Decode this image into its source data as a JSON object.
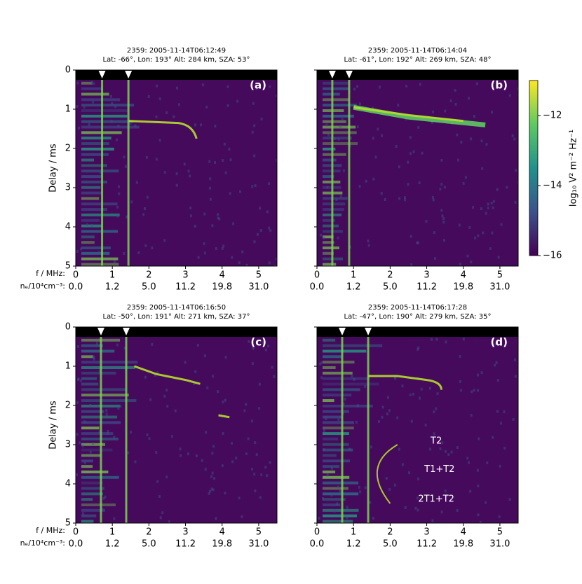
{
  "chart_data": [
    {
      "type": "spectrogram",
      "panel": "(a)",
      "title": [
        "2359: 2005-11-14T06:12:49",
        "Lat: -66°, Lon: 193° Alt: 284 km, SZA: 53°"
      ],
      "ylabel": "Delay / ms",
      "xlabel": "f / MHz:",
      "x2label": "nₑ/10⁴cm⁻³:",
      "xlim": [
        0,
        5.5
      ],
      "xticks": [
        0,
        1,
        2,
        3,
        4,
        5
      ],
      "x2ticks": [
        {
          "value": 0,
          "label": "0.0"
        },
        {
          "value": 1,
          "label": "1.2"
        },
        {
          "value": 2,
          "label": "5.0"
        },
        {
          "value": 3,
          "label": "11.2"
        },
        {
          "value": 4,
          "label": "19.8"
        },
        {
          "value": 5,
          "label": "31.0"
        }
      ],
      "ylim": [
        5,
        0
      ],
      "yticks": [
        0,
        1,
        2,
        3,
        4,
        5
      ],
      "markers": [
        0.72,
        1.44
      ]
    },
    {
      "type": "spectrogram",
      "panel": "(b)",
      "title": [
        "2359: 2005-11-14T06:14:04",
        "Lat: -61°, Lon: 192° Alt: 269 km, SZA: 48°"
      ],
      "sharey": true,
      "xlim": [
        0,
        5.5
      ],
      "xticks": [
        0,
        1,
        2,
        3,
        4,
        5
      ],
      "x2ticks": [
        {
          "value": 0,
          "label": "0.0"
        },
        {
          "value": 1,
          "label": "1.2"
        },
        {
          "value": 2,
          "label": "5.0"
        },
        {
          "value": 3,
          "label": "11.2"
        },
        {
          "value": 4,
          "label": "19.8"
        },
        {
          "value": 5,
          "label": "31.0"
        }
      ],
      "ylim": [
        5,
        0
      ],
      "yticks": [
        0,
        1,
        2,
        3,
        4,
        5
      ],
      "markers": [
        0.42,
        0.88
      ]
    },
    {
      "type": "spectrogram",
      "panel": "(c)",
      "title": [
        "2359: 2005-11-14T06:16:50",
        "Lat: -50°, Lon: 191° Alt: 271 km, SZA: 37°"
      ],
      "ylabel": "Delay / ms",
      "xlabel": "f / MHz:",
      "x2label": "nₑ/10⁴cm⁻³:",
      "xlim": [
        0,
        5.5
      ],
      "xticks": [
        0,
        1,
        2,
        3,
        4,
        5
      ],
      "x2ticks": [
        {
          "value": 0,
          "label": "0.0"
        },
        {
          "value": 1,
          "label": "1.2"
        },
        {
          "value": 2,
          "label": "5.0"
        },
        {
          "value": 3,
          "label": "11.2"
        },
        {
          "value": 4,
          "label": "19.8"
        },
        {
          "value": 5,
          "label": "31.0"
        }
      ],
      "ylim": [
        5,
        0
      ],
      "yticks": [
        0,
        1,
        2,
        3,
        4,
        5
      ],
      "markers": [
        0.69,
        1.38
      ]
    },
    {
      "type": "spectrogram",
      "panel": "(d)",
      "title": [
        "2359: 2005-11-14T06:17:28",
        "Lat: -47°, Lon: 190° Alt: 279 km, SZA: 35°"
      ],
      "sharey": true,
      "xlim": [
        0,
        5.5
      ],
      "xticks": [
        0,
        1,
        2,
        3,
        4,
        5
      ],
      "x2ticks": [
        {
          "value": 0,
          "label": "0.0"
        },
        {
          "value": 1,
          "label": "1.2"
        },
        {
          "value": 2,
          "label": "5.0"
        },
        {
          "value": 3,
          "label": "11.2"
        },
        {
          "value": 4,
          "label": "19.8"
        },
        {
          "value": 5,
          "label": "31.0"
        }
      ],
      "ylim": [
        5,
        0
      ],
      "yticks": [
        0,
        1,
        2,
        3,
        4,
        5
      ],
      "markers": [
        0.69,
        1.4
      ],
      "annotations": [
        {
          "text": "T2",
          "x": 3.26,
          "y": 2.91
        },
        {
          "text": "T1+T2",
          "x": 3.35,
          "y": 3.63
        },
        {
          "text": "2T1+T2",
          "x": 3.26,
          "y": 4.39
        }
      ]
    }
  ],
  "colorbar": {
    "label": "log₁₀ V² m⁻² Hz⁻¹",
    "ylim": [
      -16,
      -11
    ],
    "yticks": [
      {
        "value": -16,
        "label": "−16"
      },
      {
        "value": -14,
        "label": "−14"
      },
      {
        "value": -12,
        "label": "−12"
      }
    ]
  }
}
